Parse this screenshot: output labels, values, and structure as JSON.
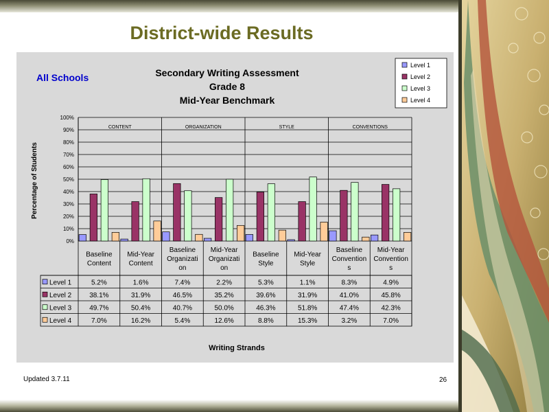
{
  "slide": {
    "title": "District-wide Results",
    "footer_left": "Updated 3.7.11",
    "page_number": "26"
  },
  "colors": {
    "title": "#6b6b23",
    "panel_background": "#d9d9d9",
    "subtitle_blue": "#0000cc"
  },
  "chart_data": {
    "type": "bar",
    "subtitle": "All Schools",
    "title": [
      "Secondary Writing Assessment",
      "Grade 8",
      "Mid-Year Benchmark"
    ],
    "xlabel": "Writing Strands",
    "ylabel": "Percentage of Students",
    "ylim": [
      0,
      100
    ],
    "yticks": [
      "0%",
      "10%",
      "20%",
      "30%",
      "40%",
      "50%",
      "60%",
      "70%",
      "80%",
      "90%",
      "100%"
    ],
    "grid": true,
    "legend_position": "top-right",
    "groups": [
      "CONTENT",
      "ORGANIZATION",
      "STYLE",
      "CONVENTIONS"
    ],
    "categories": [
      [
        "Baseline",
        "Content"
      ],
      [
        "Mid-Year",
        "Content"
      ],
      [
        "Baseline",
        "Organizati",
        "on"
      ],
      [
        "Mid-Year",
        "Organizati",
        "on"
      ],
      [
        "Baseline",
        "Style"
      ],
      [
        "Mid-Year",
        "Style"
      ],
      [
        "Baseline",
        "Convention",
        "s"
      ],
      [
        "Mid-Year",
        "Convention",
        "s"
      ]
    ],
    "series": [
      {
        "name": "Level 1",
        "color": "#9999ff",
        "values": [
          5.2,
          1.6,
          7.4,
          2.2,
          5.3,
          1.1,
          8.3,
          4.9
        ],
        "labels": [
          "5.2%",
          "1.6%",
          "7.4%",
          "2.2%",
          "5.3%",
          "1.1%",
          "8.3%",
          "4.9%"
        ]
      },
      {
        "name": "Level 2",
        "color": "#993366",
        "values": [
          38.1,
          31.9,
          46.5,
          35.2,
          39.6,
          31.9,
          41.0,
          45.8
        ],
        "labels": [
          "38.1%",
          "31.9%",
          "46.5%",
          "35.2%",
          "39.6%",
          "31.9%",
          "41.0%",
          "45.8%"
        ]
      },
      {
        "name": "Level 3",
        "color": "#ccffcc",
        "values": [
          49.7,
          50.4,
          40.7,
          50.0,
          46.3,
          51.8,
          47.4,
          42.3
        ],
        "labels": [
          "49.7%",
          "50.4%",
          "40.7%",
          "50.0%",
          "46.3%",
          "51.8%",
          "47.4%",
          "42.3%"
        ]
      },
      {
        "name": "Level 4",
        "color": "#ffcc99",
        "values": [
          7.0,
          16.2,
          5.4,
          12.6,
          8.8,
          15.3,
          3.2,
          7.0
        ],
        "labels": [
          "7.0%",
          "16.2%",
          "5.4%",
          "12.6%",
          "8.8%",
          "15.3%",
          "3.2%",
          "7.0%"
        ]
      }
    ]
  }
}
